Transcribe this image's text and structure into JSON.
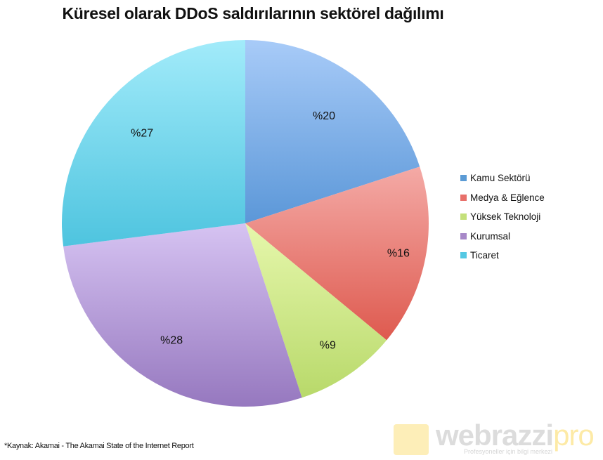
{
  "title": "Küresel olarak DDoS saldırılarının sektörel dağılımı",
  "source_note": "*Kaynak: Akamai - The Akamai State of the Internet Report",
  "logo": {
    "main": "webrazzi",
    "accent": "pro",
    "tagline": "Profesyoneller için bilgi merkezi"
  },
  "legend": [
    {
      "label": "Kamu Sektörü",
      "color": "#5b9bd5"
    },
    {
      "label": "Medya & Eğlence",
      "color": "#e8706a"
    },
    {
      "label": "Yüksek Teknoloji",
      "color": "#c4e07a"
    },
    {
      "label": "Kurumsal",
      "color": "#a788c8"
    },
    {
      "label": "Ticaret",
      "color": "#55c8e3"
    }
  ],
  "chart_data": {
    "type": "pie",
    "title": "Küresel olarak DDoS saldırılarının sektörel dağılımı",
    "categories": [
      "Kamu Sektörü",
      "Medya & Eğlence",
      "Yüksek Teknoloji",
      "Kurumsal",
      "Ticaret"
    ],
    "values": [
      20,
      16,
      9,
      28,
      27
    ],
    "labels": [
      "%20",
      "%16",
      "%9",
      "%28",
      "%27"
    ],
    "unit": "%",
    "start_angle": "12 o'clock, clockwise",
    "legend_position": "right",
    "colors": {
      "Kamu Sektörü": [
        "#a8cbf8",
        "#5b97d8"
      ],
      "Medya & Eğlence": [
        "#f4aaa6",
        "#de5a4f"
      ],
      "Yüksek Teknoloji": [
        "#e6f7ac",
        "#b8d96a"
      ],
      "Kurumsal": [
        "#d6c3f2",
        "#9678bf"
      ],
      "Ticaret": [
        "#a2ebfa",
        "#4ec4df"
      ]
    }
  }
}
